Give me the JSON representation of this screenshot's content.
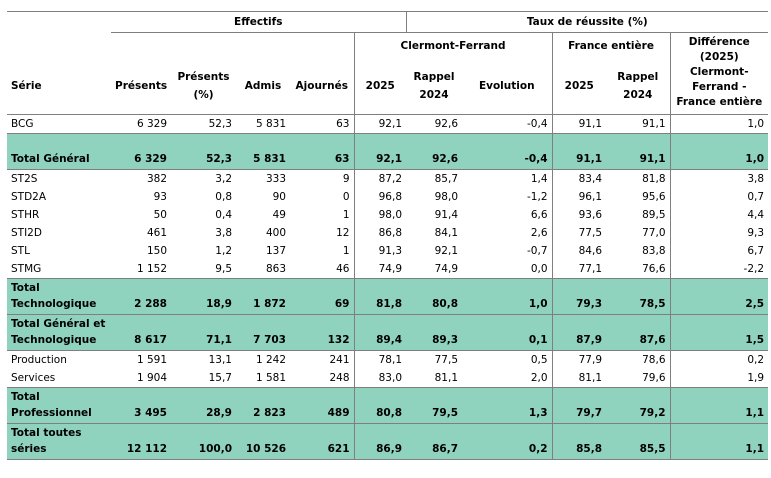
{
  "header": {
    "effectifs": "Effectifs",
    "taux": "Taux de réussite (%)",
    "clermont": "Clermont-Ferrand",
    "france": "France entière",
    "difference": "Différence (2025) Clermont-Ferrand - France entière",
    "serie": "Série",
    "presents": "Présents",
    "presents_pct": "Présents (%)",
    "admis": "Admis",
    "ajournes": "Ajournés",
    "y2025": "2025",
    "rappel": "Rappel 2024",
    "evolution": "Evolution",
    "fe2025": "2025",
    "fe_rappel": "Rappel 2024"
  },
  "rows": [
    {
      "serie": "BCG",
      "presents": "6 329",
      "pct": "52,3",
      "admis": "5 831",
      "ajournes": "63",
      "t2025": "92,1",
      "t2024": "92,6",
      "evol": "-0,4",
      "f2025": "91,1",
      "f2024": "91,1",
      "diff": "1,0",
      "total": false
    },
    {
      "serie": "Total Général",
      "presents": "6 329",
      "pct": "52,3",
      "admis": "5 831",
      "ajournes": "63",
      "t2025": "92,1",
      "t2024": "92,6",
      "evol": "-0,4",
      "f2025": "91,1",
      "f2024": "91,1",
      "diff": "1,0",
      "total": true
    },
    {
      "serie": "ST2S",
      "presents": "382",
      "pct": "3,2",
      "admis": "333",
      "ajournes": "9",
      "t2025": "87,2",
      "t2024": "85,7",
      "evol": "1,4",
      "f2025": "83,4",
      "f2024": "81,8",
      "diff": "3,8",
      "total": false
    },
    {
      "serie": "STD2A",
      "presents": "93",
      "pct": "0,8",
      "admis": "90",
      "ajournes": "0",
      "t2025": "96,8",
      "t2024": "98,0",
      "evol": "-1,2",
      "f2025": "96,1",
      "f2024": "95,6",
      "diff": "0,7",
      "total": false
    },
    {
      "serie": "STHR",
      "presents": "50",
      "pct": "0,4",
      "admis": "49",
      "ajournes": "1",
      "t2025": "98,0",
      "t2024": "91,4",
      "evol": "6,6",
      "f2025": "93,6",
      "f2024": "89,5",
      "diff": "4,4",
      "total": false
    },
    {
      "serie": "STI2D",
      "presents": "461",
      "pct": "3,8",
      "admis": "400",
      "ajournes": "12",
      "t2025": "86,8",
      "t2024": "84,1",
      "evol": "2,6",
      "f2025": "77,5",
      "f2024": "77,0",
      "diff": "9,3",
      "total": false
    },
    {
      "serie": "STL",
      "presents": "150",
      "pct": "1,2",
      "admis": "137",
      "ajournes": "1",
      "t2025": "91,3",
      "t2024": "92,1",
      "evol": "-0,7",
      "f2025": "84,6",
      "f2024": "83,8",
      "diff": "6,7",
      "total": false
    },
    {
      "serie": "STMG",
      "presents": "1 152",
      "pct": "9,5",
      "admis": "863",
      "ajournes": "46",
      "t2025": "74,9",
      "t2024": "74,9",
      "evol": "0,0",
      "f2025": "77,1",
      "f2024": "76,6",
      "diff": "-2,2",
      "total": false
    },
    {
      "serie": "Total Technologique",
      "presents": "2 288",
      "pct": "18,9",
      "admis": "1 872",
      "ajournes": "69",
      "t2025": "81,8",
      "t2024": "80,8",
      "evol": "1,0",
      "f2025": "79,3",
      "f2024": "78,5",
      "diff": "2,5",
      "total": true
    },
    {
      "serie": "Total Général et Technologique",
      "presents": "8 617",
      "pct": "71,1",
      "admis": "7 703",
      "ajournes": "132",
      "t2025": "89,4",
      "t2024": "89,3",
      "evol": "0,1",
      "f2025": "87,9",
      "f2024": "87,6",
      "diff": "1,5",
      "total": true
    },
    {
      "serie": "Production",
      "presents": "1 591",
      "pct": "13,1",
      "admis": "1 242",
      "ajournes": "241",
      "t2025": "78,1",
      "t2024": "77,5",
      "evol": "0,5",
      "f2025": "77,9",
      "f2024": "78,6",
      "diff": "0,2",
      "total": false
    },
    {
      "serie": "Services",
      "presents": "1 904",
      "pct": "15,7",
      "admis": "1 581",
      "ajournes": "248",
      "t2025": "83,0",
      "t2024": "81,1",
      "evol": "2,0",
      "f2025": "81,1",
      "f2024": "79,6",
      "diff": "1,9",
      "total": false
    },
    {
      "serie": "Total Professionnel",
      "presents": "3 495",
      "pct": "28,9",
      "admis": "2 823",
      "ajournes": "489",
      "t2025": "80,8",
      "t2024": "79,5",
      "evol": "1,3",
      "f2025": "79,7",
      "f2024": "79,2",
      "diff": "1,1",
      "total": true
    },
    {
      "serie": "Total toutes séries",
      "presents": "12 112",
      "pct": "100,0",
      "admis": "10 526",
      "ajournes": "621",
      "t2025": "86,9",
      "t2024": "86,7",
      "evol": "0,2",
      "f2025": "85,8",
      "f2024": "85,5",
      "diff": "1,1",
      "total": true
    }
  ]
}
